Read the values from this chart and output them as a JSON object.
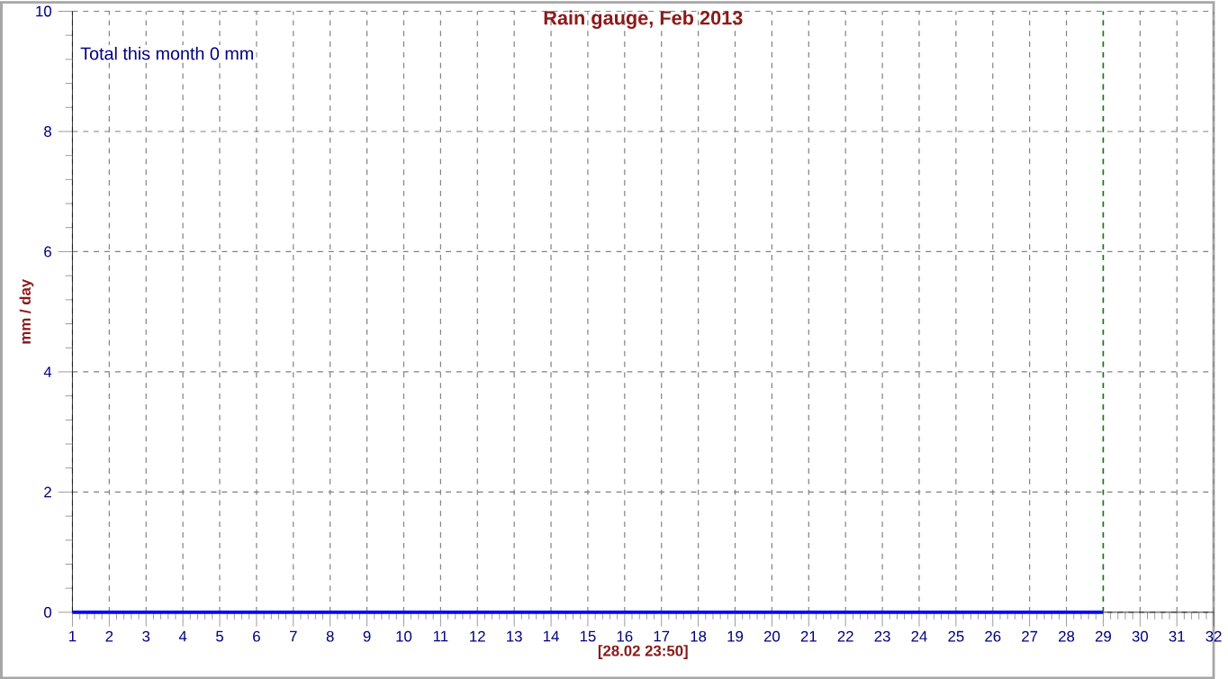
{
  "chart_data": {
    "type": "bar",
    "title": "Rain gauge, Feb 2013",
    "xlabel": "[28.02 23:50]",
    "ylabel": "mm / day",
    "annotations": [
      "Total this month 0 mm"
    ],
    "series": [
      {
        "color": "#0000ff",
        "x": [
          1,
          2,
          3,
          4,
          5,
          6,
          7,
          8,
          9,
          10,
          11,
          12,
          13,
          14,
          15,
          16,
          17,
          18,
          19,
          20,
          21,
          22,
          23,
          24,
          25,
          26,
          27,
          28
        ],
        "values": [
          0,
          0,
          0,
          0,
          0,
          0,
          0,
          0,
          0,
          0,
          0,
          0,
          0,
          0,
          0,
          0,
          0,
          0,
          0,
          0,
          0,
          0,
          0,
          0,
          0,
          0,
          0,
          0
        ]
      }
    ],
    "xlim": [
      1,
      32
    ],
    "xticks": [
      1,
      2,
      3,
      4,
      5,
      6,
      7,
      8,
      9,
      10,
      11,
      12,
      13,
      14,
      15,
      16,
      17,
      18,
      19,
      20,
      21,
      22,
      23,
      24,
      25,
      26,
      27,
      28,
      29,
      30,
      31,
      32
    ],
    "ylim": [
      0,
      10
    ],
    "yticks": [
      0,
      2,
      4,
      6,
      8,
      10
    ],
    "grid": true,
    "ref_lines": [
      {
        "axis": "x",
        "value": 29,
        "color": "#008000",
        "line_style": "dashed"
      }
    ]
  }
}
